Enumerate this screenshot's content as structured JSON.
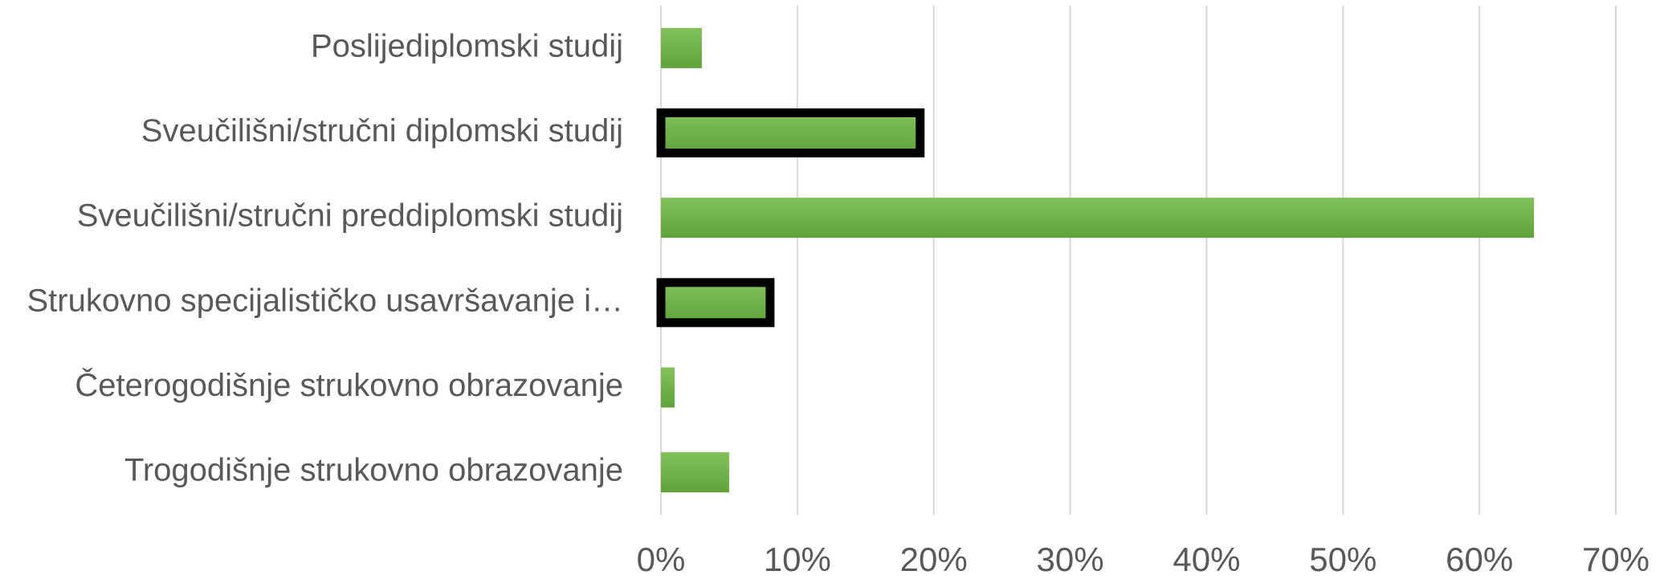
{
  "chart_data": {
    "type": "barh",
    "categories": [
      "Poslijediplomski studij",
      "Sveučilišni/stručni diplomski studij",
      "Sveučilišni/stručni preddiplomski studij",
      "Strukovno specijalističko usavršavanje i…",
      "Četerogodišnje strukovno obrazovanje",
      "Trogodišnje strukovno obrazovanje"
    ],
    "values": [
      3,
      19,
      64,
      8,
      1,
      5
    ],
    "color": "#70ad47",
    "border_colors": [
      null,
      "#000000",
      null,
      "#000000",
      null,
      null
    ],
    "xlim": [
      0,
      70
    ],
    "xticks": [
      {
        "value": 0,
        "label": "0%"
      },
      {
        "value": 10,
        "label": "10%"
      },
      {
        "value": 20,
        "label": "20%"
      },
      {
        "value": 30,
        "label": "30%"
      },
      {
        "value": 40,
        "label": "40%"
      },
      {
        "value": 50,
        "label": "50%"
      },
      {
        "value": 60,
        "label": "60%"
      },
      {
        "value": 70,
        "label": "70%"
      }
    ],
    "grid": true
  }
}
